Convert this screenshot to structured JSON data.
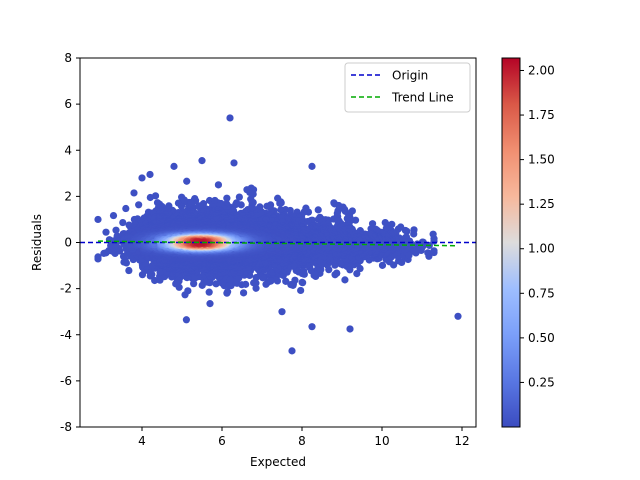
{
  "chart_data": {
    "type": "scatter",
    "title": "",
    "xlabel": "Expected",
    "ylabel": "Residuals",
    "xlim": [
      2.45,
      12.35
    ],
    "ylim": [
      -8,
      8
    ],
    "xticks": [
      4,
      6,
      8,
      10,
      12
    ],
    "yticks": [
      -8,
      -6,
      -4,
      -2,
      0,
      2,
      4,
      6,
      8
    ],
    "grid": false,
    "legend": {
      "placement": "top-right",
      "entries": [
        {
          "label": "Origin",
          "color": "#0000cc",
          "style": "dashed"
        },
        {
          "label": "Trend Line",
          "color": "#00aa00",
          "style": "dashed"
        }
      ]
    },
    "colorbar": {
      "min": 0.0,
      "max": 2.07,
      "ticks": [
        0.25,
        0.5,
        0.75,
        1.0,
        1.25,
        1.5,
        1.75,
        2.0
      ],
      "tick_labels": [
        "0.25",
        "0.50",
        "0.75",
        "1.00",
        "1.25",
        "1.50",
        "1.75",
        "2.00"
      ],
      "colormap": "coolwarm"
    },
    "origin_line": {
      "y": 0
    },
    "trend_line": {
      "x": [
        2.9,
        11.9
      ],
      "y": [
        0.06,
        -0.14
      ]
    },
    "point_cloud": {
      "description_free": true,
      "center": [
        5.6,
        0.0
      ],
      "x_range": [
        2.9,
        11.9
      ],
      "y_spread_at_center": 1.3,
      "approx_count": 5000
    },
    "highlight_points": [
      {
        "x": 6.2,
        "y": 5.4,
        "density": 0.02
      },
      {
        "x": 8.25,
        "y": 3.3,
        "density": 0.02
      },
      {
        "x": 5.5,
        "y": 3.55,
        "density": 0.02
      },
      {
        "x": 6.3,
        "y": 3.45,
        "density": 0.02
      },
      {
        "x": 11.9,
        "y": -3.2,
        "density": 0.02
      },
      {
        "x": 7.75,
        "y": -4.7,
        "density": 0.02
      },
      {
        "x": 9.2,
        "y": -3.75,
        "density": 0.02
      },
      {
        "x": 8.25,
        "y": -3.65,
        "density": 0.02
      },
      {
        "x": 7.5,
        "y": -3.0,
        "density": 0.02
      },
      {
        "x": 5.7,
        "y": -2.65,
        "density": 0.02
      },
      {
        "x": 2.9,
        "y": 1.0,
        "density": 0.02
      },
      {
        "x": 3.1,
        "y": -0.45,
        "density": 0.02
      },
      {
        "x": 3.8,
        "y": 2.15,
        "density": 0.02
      },
      {
        "x": 4.0,
        "y": 2.8,
        "density": 0.02
      },
      {
        "x": 4.2,
        "y": 2.95,
        "density": 0.02
      },
      {
        "x": 4.8,
        "y": 3.3,
        "density": 0.02
      },
      {
        "x": 10.5,
        "y": -0.55,
        "density": 0.02
      },
      {
        "x": 10.8,
        "y": 0.55,
        "density": 0.02
      }
    ]
  }
}
